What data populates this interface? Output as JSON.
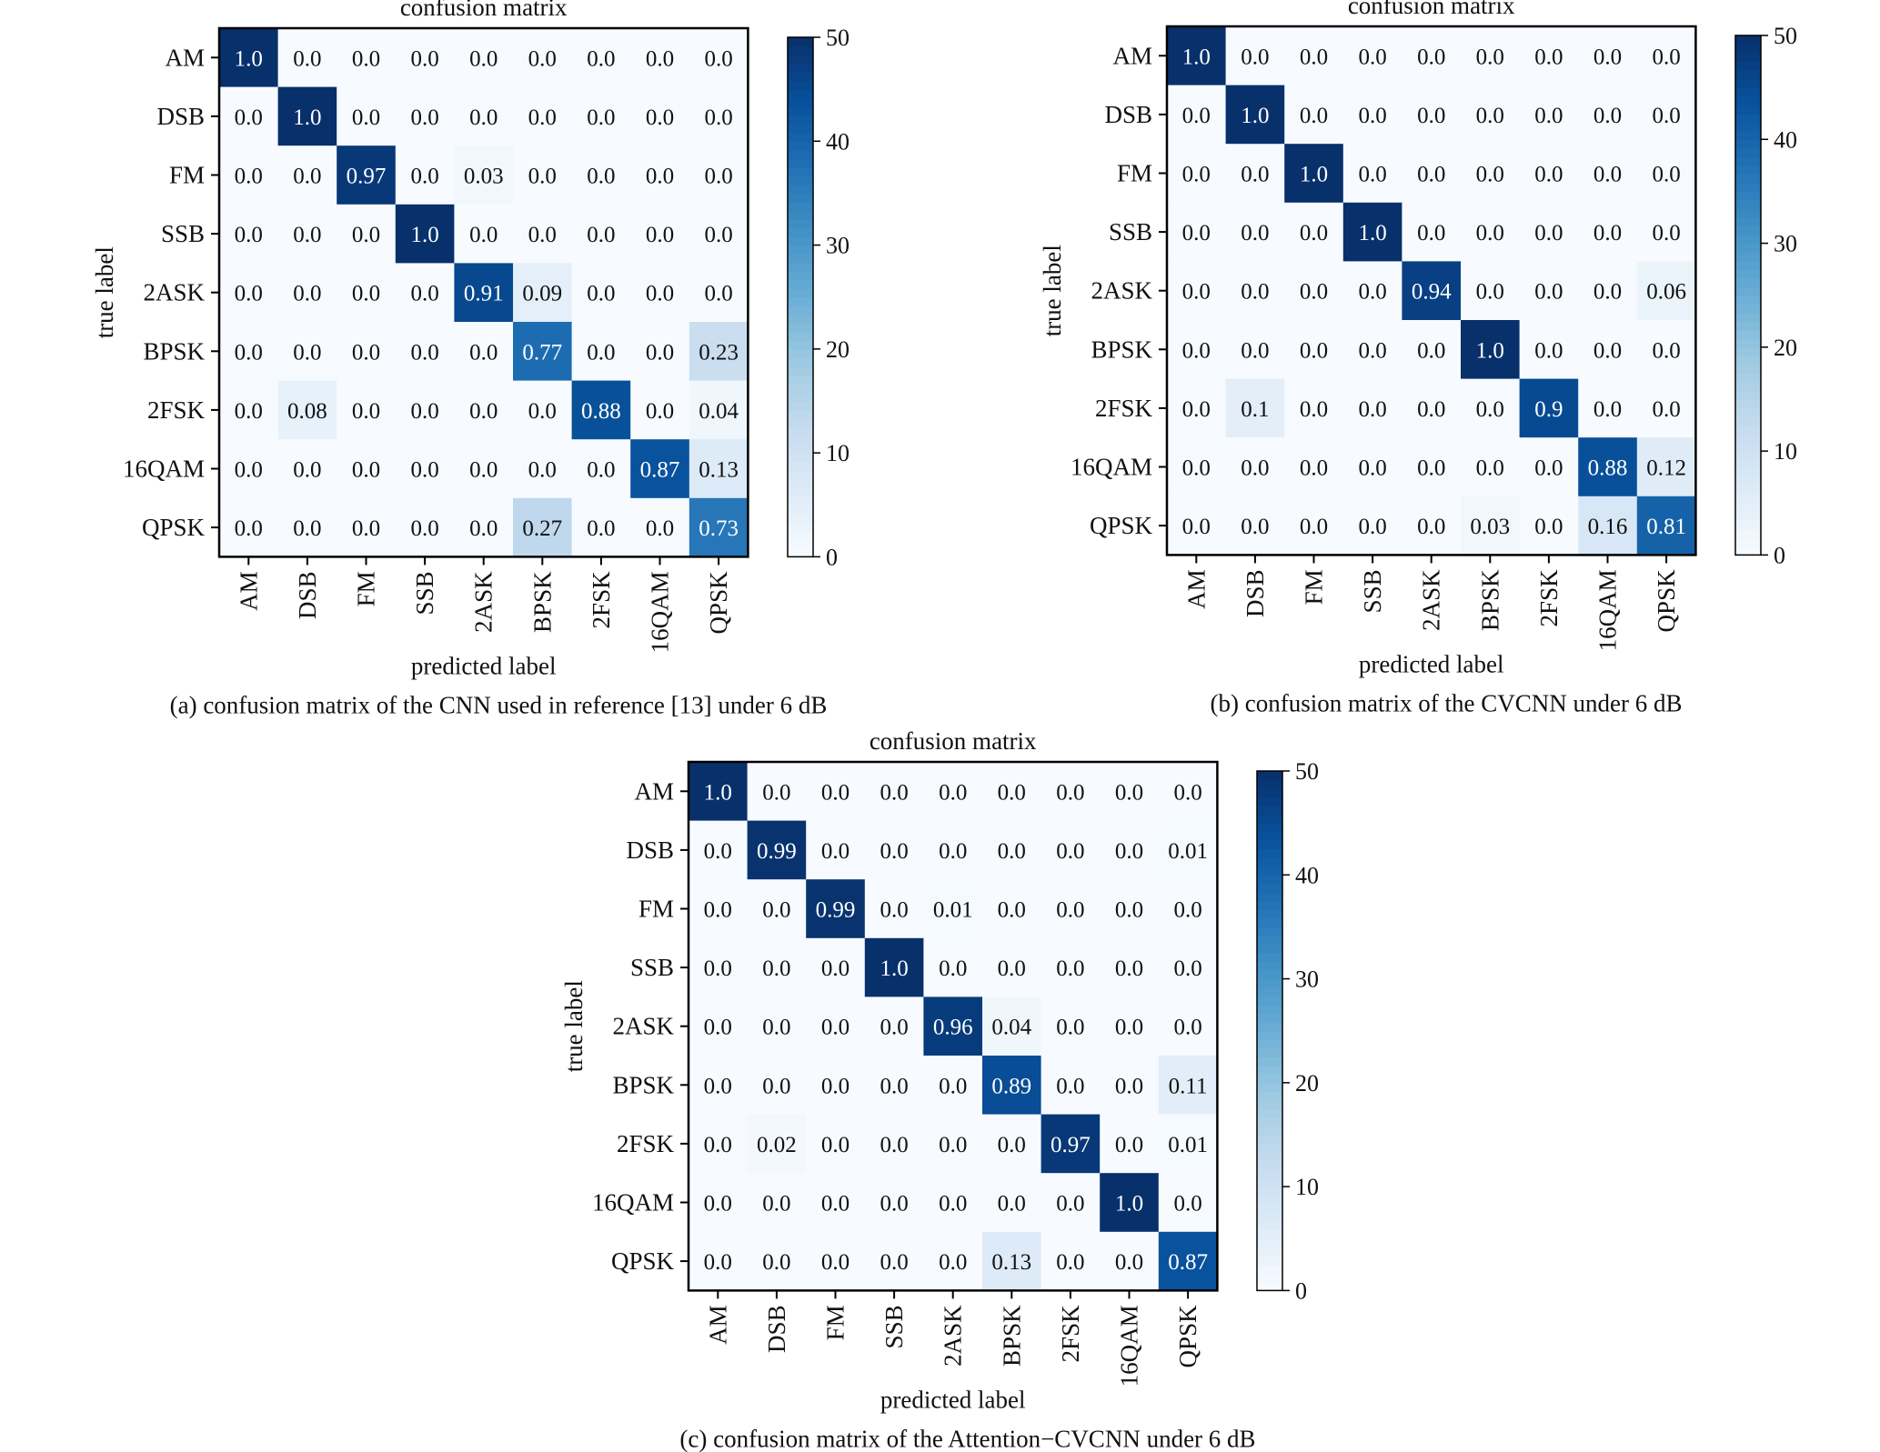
{
  "figure": {
    "panel_captions": [
      "(a) confusion matrix of the CNN used in reference [13] under 6 dB",
      "(b) confusion matrix of the CVCNN under 6 dB",
      "(c) confusion matrix of the Attention−CVCNN under 6 dB"
    ]
  },
  "colors": {
    "colormap": "Blues",
    "low": "#f7fbff",
    "high": "#08306b",
    "text_dark": "#111111",
    "text_light": "#ffffff"
  },
  "chart_data": [
    {
      "type": "heatmap",
      "title": "confusion matrix",
      "xlabel": "predicted label",
      "ylabel": "true label",
      "caption": "(a) confusion matrix of the CNN used in reference [13] under 6 dB",
      "x_categories": [
        "AM",
        "DSB",
        "FM",
        "SSB",
        "2ASK",
        "BPSK",
        "2FSK",
        "16QAM",
        "QPSK"
      ],
      "y_categories": [
        "AM",
        "DSB",
        "FM",
        "SSB",
        "2ASK",
        "BPSK",
        "2FSK",
        "16QAM",
        "QPSK"
      ],
      "values": [
        [
          1.0,
          0.0,
          0.0,
          0.0,
          0.0,
          0.0,
          0.0,
          0.0,
          0.0
        ],
        [
          0.0,
          1.0,
          0.0,
          0.0,
          0.0,
          0.0,
          0.0,
          0.0,
          0.0
        ],
        [
          0.0,
          0.0,
          0.97,
          0.0,
          0.03,
          0.0,
          0.0,
          0.0,
          0.0
        ],
        [
          0.0,
          0.0,
          0.0,
          1.0,
          0.0,
          0.0,
          0.0,
          0.0,
          0.0
        ],
        [
          0.0,
          0.0,
          0.0,
          0.0,
          0.91,
          0.09,
          0.0,
          0.0,
          0.0
        ],
        [
          0.0,
          0.0,
          0.0,
          0.0,
          0.0,
          0.77,
          0.0,
          0.0,
          0.23
        ],
        [
          0.0,
          0.08,
          0.0,
          0.0,
          0.0,
          0.0,
          0.88,
          0.0,
          0.04
        ],
        [
          0.0,
          0.0,
          0.0,
          0.0,
          0.0,
          0.0,
          0.0,
          0.87,
          0.13
        ],
        [
          0.0,
          0.0,
          0.0,
          0.0,
          0.0,
          0.27,
          0.0,
          0.0,
          0.73
        ]
      ],
      "value_labels": [
        [
          "1.0",
          "0.0",
          "0.0",
          "0.0",
          "0.0",
          "0.0",
          "0.0",
          "0.0",
          "0.0"
        ],
        [
          "0.0",
          "1.0",
          "0.0",
          "0.0",
          "0.0",
          "0.0",
          "0.0",
          "0.0",
          "0.0"
        ],
        [
          "0.0",
          "0.0",
          "0.97",
          "0.0",
          "0.03",
          "0.0",
          "0.0",
          "0.0",
          "0.0"
        ],
        [
          "0.0",
          "0.0",
          "0.0",
          "1.0",
          "0.0",
          "0.0",
          "0.0",
          "0.0",
          "0.0"
        ],
        [
          "0.0",
          "0.0",
          "0.0",
          "0.0",
          "0.91",
          "0.09",
          "0.0",
          "0.0",
          "0.0"
        ],
        [
          "0.0",
          "0.0",
          "0.0",
          "0.0",
          "0.0",
          "0.77",
          "0.0",
          "0.0",
          "0.23"
        ],
        [
          "0.0",
          "0.08",
          "0.0",
          "0.0",
          "0.0",
          "0.0",
          "0.88",
          "0.0",
          "0.04"
        ],
        [
          "0.0",
          "0.0",
          "0.0",
          "0.0",
          "0.0",
          "0.0",
          "0.0",
          "0.87",
          "0.13"
        ],
        [
          "0.0",
          "0.0",
          "0.0",
          "0.0",
          "0.0",
          "0.27",
          "0.0",
          "0.0",
          "0.73"
        ]
      ],
      "colorbar": {
        "min": 0,
        "max": 50,
        "ticks": [
          0,
          10,
          20,
          30,
          40,
          50
        ]
      }
    },
    {
      "type": "heatmap",
      "title": "confusion matrix",
      "xlabel": "predicted label",
      "ylabel": "true label",
      "caption": "(b) confusion matrix of the CVCNN under 6 dB",
      "x_categories": [
        "AM",
        "DSB",
        "FM",
        "SSB",
        "2ASK",
        "BPSK",
        "2FSK",
        "16QAM",
        "QPSK"
      ],
      "y_categories": [
        "AM",
        "DSB",
        "FM",
        "SSB",
        "2ASK",
        "BPSK",
        "2FSK",
        "16QAM",
        "QPSK"
      ],
      "values": [
        [
          1.0,
          0.0,
          0.0,
          0.0,
          0.0,
          0.0,
          0.0,
          0.0,
          0.0
        ],
        [
          0.0,
          1.0,
          0.0,
          0.0,
          0.0,
          0.0,
          0.0,
          0.0,
          0.0
        ],
        [
          0.0,
          0.0,
          1.0,
          0.0,
          0.0,
          0.0,
          0.0,
          0.0,
          0.0
        ],
        [
          0.0,
          0.0,
          0.0,
          1.0,
          0.0,
          0.0,
          0.0,
          0.0,
          0.0
        ],
        [
          0.0,
          0.0,
          0.0,
          0.0,
          0.94,
          0.0,
          0.0,
          0.0,
          0.06
        ],
        [
          0.0,
          0.0,
          0.0,
          0.0,
          0.0,
          1.0,
          0.0,
          0.0,
          0.0
        ],
        [
          0.0,
          0.1,
          0.0,
          0.0,
          0.0,
          0.0,
          0.9,
          0.0,
          0.0
        ],
        [
          0.0,
          0.0,
          0.0,
          0.0,
          0.0,
          0.0,
          0.0,
          0.88,
          0.12
        ],
        [
          0.0,
          0.0,
          0.0,
          0.0,
          0.0,
          0.03,
          0.0,
          0.16,
          0.81
        ]
      ],
      "value_labels": [
        [
          "1.0",
          "0.0",
          "0.0",
          "0.0",
          "0.0",
          "0.0",
          "0.0",
          "0.0",
          "0.0"
        ],
        [
          "0.0",
          "1.0",
          "0.0",
          "0.0",
          "0.0",
          "0.0",
          "0.0",
          "0.0",
          "0.0"
        ],
        [
          "0.0",
          "0.0",
          "1.0",
          "0.0",
          "0.0",
          "0.0",
          "0.0",
          "0.0",
          "0.0"
        ],
        [
          "0.0",
          "0.0",
          "0.0",
          "1.0",
          "0.0",
          "0.0",
          "0.0",
          "0.0",
          "0.0"
        ],
        [
          "0.0",
          "0.0",
          "0.0",
          "0.0",
          "0.94",
          "0.0",
          "0.0",
          "0.0",
          "0.06"
        ],
        [
          "0.0",
          "0.0",
          "0.0",
          "0.0",
          "0.0",
          "1.0",
          "0.0",
          "0.0",
          "0.0"
        ],
        [
          "0.0",
          "0.1",
          "0.0",
          "0.0",
          "0.0",
          "0.0",
          "0.9",
          "0.0",
          "0.0"
        ],
        [
          "0.0",
          "0.0",
          "0.0",
          "0.0",
          "0.0",
          "0.0",
          "0.0",
          "0.88",
          "0.12"
        ],
        [
          "0.0",
          "0.0",
          "0.0",
          "0.0",
          "0.0",
          "0.03",
          "0.0",
          "0.16",
          "0.81"
        ]
      ],
      "colorbar": {
        "min": 0,
        "max": 50,
        "ticks": [
          0,
          10,
          20,
          30,
          40,
          50
        ]
      }
    },
    {
      "type": "heatmap",
      "title": "confusion matrix",
      "xlabel": "predicted label",
      "ylabel": "true label",
      "caption": "(c) confusion matrix of the Attention−CVCNN under 6 dB",
      "x_categories": [
        "AM",
        "DSB",
        "FM",
        "SSB",
        "2ASK",
        "BPSK",
        "2FSK",
        "16QAM",
        "QPSK"
      ],
      "y_categories": [
        "AM",
        "DSB",
        "FM",
        "SSB",
        "2ASK",
        "BPSK",
        "2FSK",
        "16QAM",
        "QPSK"
      ],
      "values": [
        [
          1.0,
          0.0,
          0.0,
          0.0,
          0.0,
          0.0,
          0.0,
          0.0,
          0.0
        ],
        [
          0.0,
          0.99,
          0.0,
          0.0,
          0.0,
          0.0,
          0.0,
          0.0,
          0.01
        ],
        [
          0.0,
          0.0,
          0.99,
          0.0,
          0.01,
          0.0,
          0.0,
          0.0,
          0.0
        ],
        [
          0.0,
          0.0,
          0.0,
          1.0,
          0.0,
          0.0,
          0.0,
          0.0,
          0.0
        ],
        [
          0.0,
          0.0,
          0.0,
          0.0,
          0.96,
          0.04,
          0.0,
          0.0,
          0.0
        ],
        [
          0.0,
          0.0,
          0.0,
          0.0,
          0.0,
          0.89,
          0.0,
          0.0,
          0.11
        ],
        [
          0.0,
          0.02,
          0.0,
          0.0,
          0.0,
          0.0,
          0.97,
          0.0,
          0.01
        ],
        [
          0.0,
          0.0,
          0.0,
          0.0,
          0.0,
          0.0,
          0.0,
          1.0,
          0.0
        ],
        [
          0.0,
          0.0,
          0.0,
          0.0,
          0.0,
          0.13,
          0.0,
          0.0,
          0.87
        ]
      ],
      "value_labels": [
        [
          "1.0",
          "0.0",
          "0.0",
          "0.0",
          "0.0",
          "0.0",
          "0.0",
          "0.0",
          "0.0"
        ],
        [
          "0.0",
          "0.99",
          "0.0",
          "0.0",
          "0.0",
          "0.0",
          "0.0",
          "0.0",
          "0.01"
        ],
        [
          "0.0",
          "0.0",
          "0.99",
          "0.0",
          "0.01",
          "0.0",
          "0.0",
          "0.0",
          "0.0"
        ],
        [
          "0.0",
          "0.0",
          "0.0",
          "1.0",
          "0.0",
          "0.0",
          "0.0",
          "0.0",
          "0.0"
        ],
        [
          "0.0",
          "0.0",
          "0.0",
          "0.0",
          "0.96",
          "0.04",
          "0.0",
          "0.0",
          "0.0"
        ],
        [
          "0.0",
          "0.0",
          "0.0",
          "0.0",
          "0.0",
          "0.89",
          "0.0",
          "0.0",
          "0.11"
        ],
        [
          "0.0",
          "0.02",
          "0.0",
          "0.0",
          "0.0",
          "0.0",
          "0.97",
          "0.0",
          "0.01"
        ],
        [
          "0.0",
          "0.0",
          "0.0",
          "0.0",
          "0.0",
          "0.0",
          "0.0",
          "1.0",
          "0.0"
        ],
        [
          "0.0",
          "0.0",
          "0.0",
          "0.0",
          "0.0",
          "0.13",
          "0.0",
          "0.0",
          "0.87"
        ]
      ],
      "colorbar": {
        "min": 0,
        "max": 50,
        "ticks": [
          0,
          10,
          20,
          30,
          40,
          50
        ]
      }
    }
  ]
}
